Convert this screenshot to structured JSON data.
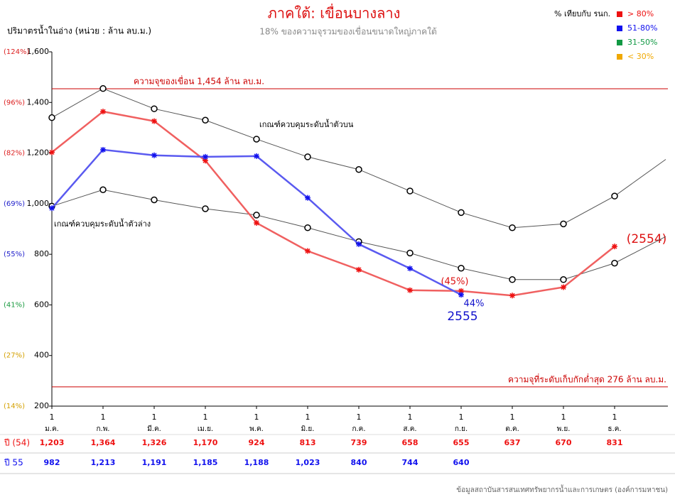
{
  "chart_data": {
    "type": "line",
    "title": "ภาคใต้: เขื่อนบางลาง",
    "subtitle": "18%  ของความจุรวมของเขื่อนขนาดใหญ่ภาคใต้",
    "y_label": "ปริมาตรน้ำในอ่าง (หน่วย : ล้าน ลบ.ม.)",
    "source": "ข้อมูลสถาบันสารสนเทศทรัพยากรน้ำและการเกษตร (องค์การมหาชน)",
    "categories": [
      "ม.ค.",
      "ก.พ.",
      "มี.ค.",
      "เม.ย.",
      "พ.ค.",
      "มิ.ย.",
      "ก.ค.",
      "ส.ค.",
      "ก.ย.",
      "ต.ค.",
      "พ.ย.",
      "ธ.ค.",
      null
    ],
    "day_label": "1",
    "ylim": [
      200,
      1600
    ],
    "yticks": [
      200,
      400,
      600,
      800,
      {
        "value": 1000,
        "label": "1,000"
      },
      {
        "value": 1200,
        "label": "1,200"
      },
      {
        "value": 1400,
        "label": "1,400"
      },
      {
        "value": 1600,
        "label": "1,600"
      }
    ],
    "percent_labels": [
      {
        "label": "(14%)",
        "color": "#d4a000"
      },
      {
        "label": "(27%)",
        "color": "#d4a000"
      },
      {
        "label": "(41%)",
        "color": "#1a9a40"
      },
      {
        "label": "(55%)",
        "color": "#2222cc"
      },
      {
        "label": "(69%)",
        "color": "#2222cc"
      },
      {
        "label": "(82%)",
        "color": "#dd2222"
      },
      {
        "label": "(96%)",
        "color": "#dd2222"
      },
      {
        "label": "(124%)",
        "color": "#dd2222"
      }
    ],
    "legend": {
      "title": "% เทียบกับ รนก.",
      "items": [
        {
          "label": "> 80%",
          "color": "#ee1111"
        },
        {
          "label": "51-80%",
          "color": "#1111ee"
        },
        {
          "label": "31-50%",
          "color": "#119944"
        },
        {
          "label": "< 30%",
          "color": "#f0a800"
        }
      ]
    },
    "reference_lines": [
      {
        "value": 1454,
        "label": "ความจุของเขื่อน 1,454 ล้าน ลบ.ม.",
        "color": "#cc0000"
      },
      {
        "value": 276,
        "label": "ความจุที่ระดับเก็บกักต่ำสุด 276 ล้าน ลบ.ม.",
        "color": "#cc0000"
      }
    ],
    "rule_curves": [
      {
        "name": "เกณฑ์ควบคุมระดับน้ำตัวบน",
        "color": "#555555",
        "values": [
          1340,
          1455,
          1375,
          1330,
          1255,
          1185,
          1135,
          1050,
          965,
          905,
          920,
          1030,
          1175
        ]
      },
      {
        "name": "เกณฑ์ควบคุมระดับน้ำตัวล่าง",
        "color": "#555555",
        "values": [
          990,
          1055,
          1015,
          980,
          955,
          905,
          850,
          805,
          745,
          700,
          700,
          765,
          870
        ]
      }
    ],
    "series": [
      {
        "name": "ปี (54)",
        "color": "#f06060",
        "marker_color": "#ee1111",
        "values": [
          1203,
          1364,
          1326,
          1170,
          924,
          813,
          739,
          658,
          655,
          637,
          670,
          831,
          null
        ],
        "value_labels": [
          "1,203",
          "1,364",
          "1,326",
          "1,170",
          "924",
          "813",
          "739",
          "658",
          "655",
          "637",
          "670",
          "831",
          null
        ]
      },
      {
        "name": "ปี 55",
        "color": "#5a5af0",
        "marker_color": "#1111ee",
        "values": [
          982,
          1213,
          1191,
          1185,
          1188,
          1023,
          840,
          744,
          640,
          null,
          null,
          null,
          null
        ],
        "value_labels": [
          "982",
          "1,213",
          "1,191",
          "1,185",
          "1,188",
          "1,023",
          "840",
          "744",
          "640",
          null,
          null,
          null,
          null
        ]
      }
    ],
    "annotations": [
      "(2554)",
      "(45%)",
      "44%",
      "2555"
    ]
  }
}
